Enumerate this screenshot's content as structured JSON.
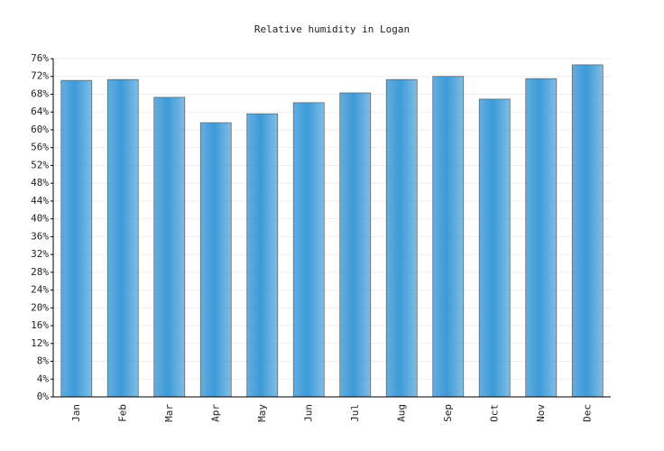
{
  "chart_data": {
    "type": "bar",
    "title": "Relative humidity in Logan",
    "categories": [
      "Jan",
      "Feb",
      "Mar",
      "Apr",
      "May",
      "Jun",
      "Jul",
      "Aug",
      "Sep",
      "Oct",
      "Nov",
      "Dec"
    ],
    "values": [
      71.1,
      71.3,
      67.3,
      61.6,
      63.6,
      66.1,
      68.3,
      71.3,
      72,
      66.9,
      71.5,
      74.6
    ],
    "color": "#3d9ad8",
    "ylim": [
      0,
      76
    ],
    "yticks": [
      {
        "value": 0,
        "label": "0%"
      },
      {
        "value": 4,
        "label": "4%"
      },
      {
        "value": 8,
        "label": "8%"
      },
      {
        "value": 12,
        "label": "12%"
      },
      {
        "value": 16,
        "label": "16%"
      },
      {
        "value": 20,
        "label": "20%"
      },
      {
        "value": 24,
        "label": "24%"
      },
      {
        "value": 28,
        "label": "28%"
      },
      {
        "value": 32,
        "label": "32%"
      },
      {
        "value": 36,
        "label": "36%"
      },
      {
        "value": 40,
        "label": "40%"
      },
      {
        "value": 44,
        "label": "44%"
      },
      {
        "value": 48,
        "label": "48%"
      },
      {
        "value": 52,
        "label": "52%"
      },
      {
        "value": 56,
        "label": "56%"
      },
      {
        "value": 60,
        "label": "60%"
      },
      {
        "value": 64,
        "label": "64%"
      },
      {
        "value": 68,
        "label": "68%"
      },
      {
        "value": 72,
        "label": "72%"
      },
      {
        "value": 76,
        "label": "76%"
      }
    ],
    "grid": true
  }
}
